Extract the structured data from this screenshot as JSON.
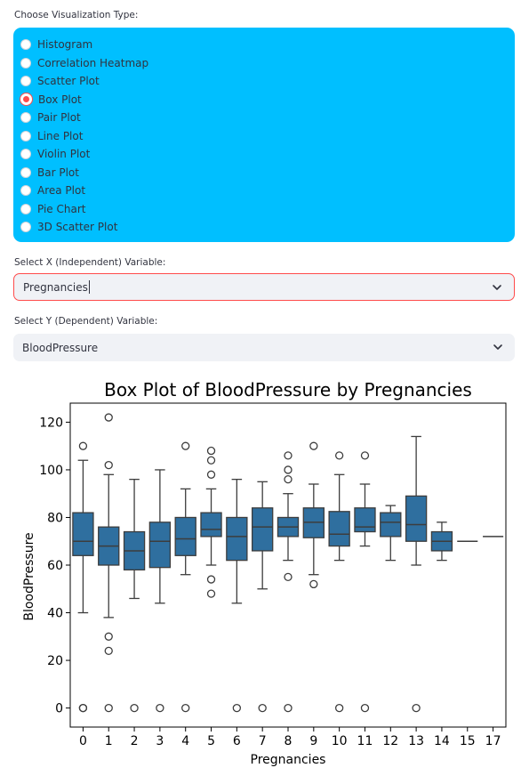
{
  "viz_type": {
    "label": "Choose Visualization Type:",
    "options": [
      "Histogram",
      "Correlation Heatmap",
      "Scatter Plot",
      "Box Plot",
      "Pair Plot",
      "Line Plot",
      "Violin Plot",
      "Bar Plot",
      "Area Plot",
      "Pie Chart",
      "3D Scatter Plot"
    ],
    "selected": "Box Plot"
  },
  "x_select": {
    "label": "Select X (Independent) Variable:",
    "value": "Pregnancies"
  },
  "y_select": {
    "label": "Select Y (Dependent) Variable:",
    "value": "BloodPressure"
  },
  "colors": {
    "panel": "#00bfff",
    "accent": "#ff4b4b",
    "box": "#2f6f9f",
    "select_bg": "#f0f2f6"
  },
  "chart_data": {
    "type": "box",
    "title": "Box Plot of BloodPressure by Pregnancies",
    "xlabel": "Pregnancies",
    "ylabel": "BloodPressure",
    "ylim": [
      -8,
      128
    ],
    "yticks": [
      0,
      20,
      40,
      60,
      80,
      100,
      120
    ],
    "categories": [
      "0",
      "1",
      "2",
      "3",
      "4",
      "5",
      "6",
      "7",
      "8",
      "9",
      "10",
      "11",
      "12",
      "13",
      "14",
      "15",
      "17"
    ],
    "boxes": [
      {
        "q1": 64,
        "median": 70,
        "q3": 82,
        "low": 40,
        "high": 104,
        "outliers": [
          110,
          0,
          0
        ]
      },
      {
        "q1": 60,
        "median": 68,
        "q3": 76,
        "low": 38,
        "high": 98,
        "outliers": [
          122,
          102,
          30,
          24,
          0
        ]
      },
      {
        "q1": 58,
        "median": 66,
        "q3": 74,
        "low": 46,
        "high": 96,
        "outliers": [
          0
        ]
      },
      {
        "q1": 59,
        "median": 70,
        "q3": 78,
        "low": 44,
        "high": 100,
        "outliers": [
          0
        ]
      },
      {
        "q1": 64,
        "median": 71,
        "q3": 80,
        "low": 56,
        "high": 92,
        "outliers": [
          110,
          0
        ]
      },
      {
        "q1": 72,
        "median": 75,
        "q3": 82,
        "low": 60,
        "high": 92,
        "outliers": [
          108,
          104,
          98,
          54,
          48
        ]
      },
      {
        "q1": 62,
        "median": 72,
        "q3": 80,
        "low": 44,
        "high": 96,
        "outliers": [
          0
        ]
      },
      {
        "q1": 66,
        "median": 76,
        "q3": 84,
        "low": 50,
        "high": 95,
        "outliers": [
          0
        ]
      },
      {
        "q1": 72,
        "median": 76,
        "q3": 80,
        "low": 62,
        "high": 90,
        "outliers": [
          106,
          100,
          96,
          55,
          0
        ]
      },
      {
        "q1": 71.5,
        "median": 78,
        "q3": 84,
        "low": 56,
        "high": 94,
        "outliers": [
          110,
          52
        ]
      },
      {
        "q1": 68,
        "median": 73,
        "q3": 82.5,
        "low": 62,
        "high": 98,
        "outliers": [
          106,
          0
        ]
      },
      {
        "q1": 74,
        "median": 76,
        "q3": 84,
        "low": 68,
        "high": 94,
        "outliers": [
          106,
          0
        ]
      },
      {
        "q1": 72,
        "median": 78,
        "q3": 82,
        "low": 62,
        "high": 85,
        "outliers": []
      },
      {
        "q1": 70,
        "median": 77,
        "q3": 89,
        "low": 60,
        "high": 114,
        "outliers": [
          0
        ]
      },
      {
        "q1": 66,
        "median": 70,
        "q3": 74,
        "low": 62,
        "high": 78,
        "outliers": []
      },
      {
        "q1": 70,
        "median": 70,
        "q3": 70,
        "low": 70,
        "high": 70,
        "outliers": []
      },
      {
        "q1": 72,
        "median": 72,
        "q3": 72,
        "low": 72,
        "high": 72,
        "outliers": []
      }
    ]
  }
}
